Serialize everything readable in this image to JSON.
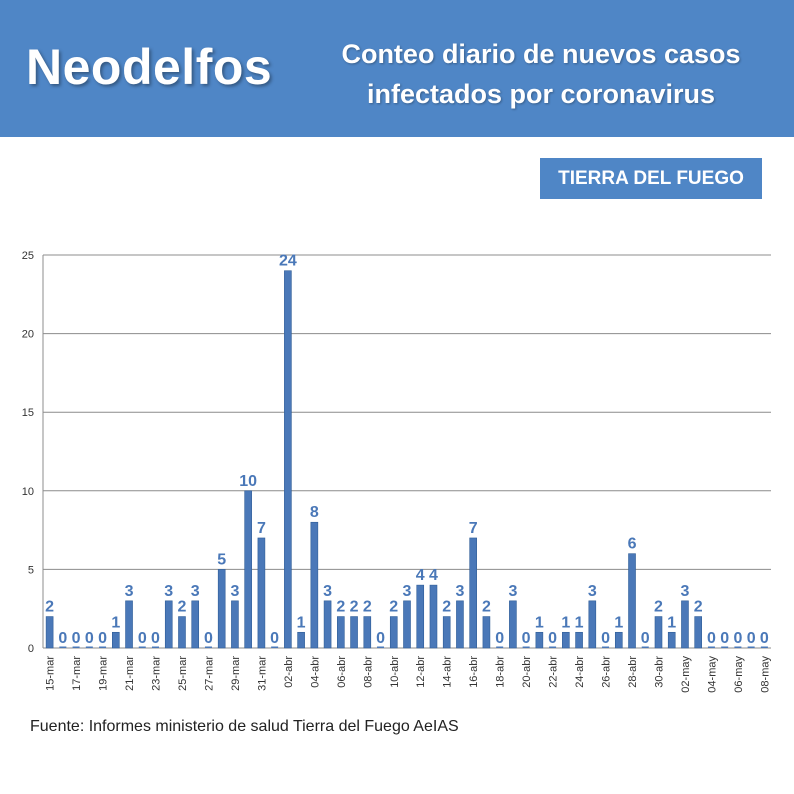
{
  "header": {
    "brand": "Neodelfos",
    "subtitle_line1": "Conteo diario de nuevos casos",
    "subtitle_line2": "infectados por coronavirus"
  },
  "region_badge": "TIERRA DEL FUEGO",
  "source": "Fuente: Informes ministerio de salud Tierra del Fuego AeIAS",
  "colors": {
    "header": "#4f86c6",
    "bar": "#4a78b8",
    "label": "#4a78b8"
  },
  "chart_data": {
    "type": "bar",
    "title": "",
    "xlabel": "",
    "ylabel": "",
    "ylim": [
      0,
      25
    ],
    "yticks": [
      0,
      5,
      10,
      15,
      20,
      25
    ],
    "grid": true,
    "categories": [
      "15-mar",
      "16-mar",
      "17-mar",
      "18-mar",
      "19-mar",
      "20-mar",
      "21-mar",
      "22-mar",
      "23-mar",
      "24-mar",
      "25-mar",
      "26-mar",
      "27-mar",
      "28-mar",
      "29-mar",
      "30-mar",
      "31-mar",
      "01-abr",
      "02-abr",
      "03-abr",
      "04-abr",
      "05-abr",
      "06-abr",
      "07-abr",
      "08-abr",
      "09-abr",
      "10-abr",
      "11-abr",
      "12-abr",
      "13-abr",
      "14-abr",
      "15-abr",
      "16-abr",
      "17-abr",
      "18-abr",
      "19-abr",
      "20-abr",
      "21-abr",
      "22-abr",
      "23-abr",
      "24-abr",
      "25-abr",
      "26-abr",
      "27-abr",
      "28-abr",
      "29-abr",
      "30-abr",
      "01-may",
      "02-may",
      "03-may",
      "04-may",
      "05-may",
      "06-may",
      "07-may",
      "08-may"
    ],
    "tick_labels": [
      "15-mar",
      "17-mar",
      "19-mar",
      "21-mar",
      "23-mar",
      "25-mar",
      "27-mar",
      "29-mar",
      "31-mar",
      "02-abr",
      "04-abr",
      "06-abr",
      "08-abr",
      "10-abr",
      "12-abr",
      "14-abr",
      "16-abr",
      "18-abr",
      "20-abr",
      "22-abr",
      "24-abr",
      "26-abr",
      "28-abr",
      "30-abr",
      "02-may",
      "04-may",
      "06-may",
      "08-may"
    ],
    "values": [
      2,
      0,
      0,
      0,
      0,
      1,
      3,
      0,
      0,
      3,
      2,
      3,
      0,
      5,
      3,
      10,
      7,
      0,
      24,
      1,
      8,
      3,
      2,
      2,
      2,
      0,
      2,
      3,
      4,
      4,
      2,
      3,
      7,
      2,
      0,
      3,
      0,
      1,
      0,
      1,
      1,
      3,
      0,
      1,
      6,
      0,
      2,
      1,
      3,
      2,
      0,
      0,
      0,
      0,
      0
    ]
  }
}
